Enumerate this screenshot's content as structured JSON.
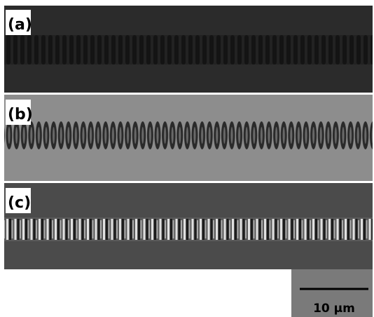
{
  "panels": [
    {
      "label": "(a)"
    },
    {
      "label": "(b)"
    },
    {
      "label": "(c)"
    }
  ],
  "scale_bar": {
    "label": "10 μm"
  }
}
